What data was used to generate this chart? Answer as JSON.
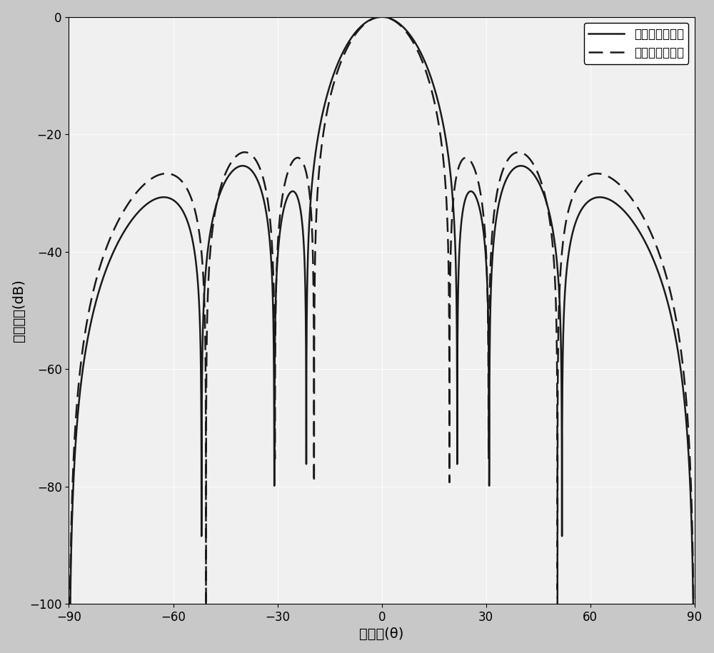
{
  "xlabel": "方位角(θ)",
  "ylabel": "辐射场强(dB)",
  "xlim": [
    -90,
    90
  ],
  "ylim": [
    -100,
    0
  ],
  "xticks": [
    -90,
    -60,
    -30,
    0,
    30,
    60,
    90
  ],
  "yticks": [
    0,
    -20,
    -40,
    -60,
    -80,
    -100
  ],
  "legend_labels": [
    "改进粒子群算法",
    "传统粒子群算法"
  ],
  "line1_color": "#1a1a1a",
  "line2_color": "#1a1a1a",
  "background_color": "#c8c8c8",
  "plot_bg_color": "#f0f0f0",
  "axis_fontsize": 14,
  "legend_fontsize": 12,
  "tick_fontsize": 12
}
